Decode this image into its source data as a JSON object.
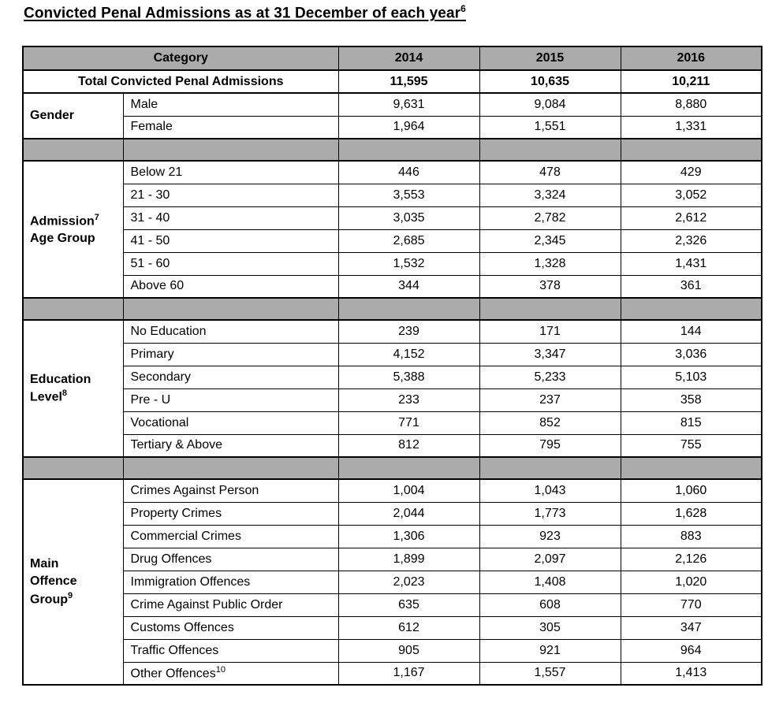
{
  "title": {
    "text": "Convicted Penal Admissions as at 31 December of each year",
    "superscript": "6"
  },
  "colors": {
    "header_bg": "#ababab",
    "separator_bg": "#ababab",
    "border": "#000000",
    "text": "#000000"
  },
  "table": {
    "header": {
      "category_label": "Category",
      "year_columns": [
        "2014",
        "2015",
        "2016"
      ]
    },
    "total_row": {
      "label": "Total Convicted Penal Admissions",
      "values": [
        "11,595",
        "10,635",
        "10,211"
      ]
    },
    "sections": [
      {
        "name": "gender",
        "label_lines": [
          {
            "text": "Gender",
            "sup": ""
          }
        ],
        "rows": [
          {
            "label": "Male",
            "sup": "",
            "values": [
              "9,631",
              "9,084",
              "8,880"
            ]
          },
          {
            "label": "Female",
            "sup": "",
            "values": [
              "1,964",
              "1,551",
              "1,331"
            ]
          }
        ]
      },
      {
        "name": "admission-age-group",
        "label_lines": [
          {
            "text": "Admission",
            "sup": "7"
          },
          {
            "text": "Age Group",
            "sup": ""
          }
        ],
        "rows": [
          {
            "label": "Below 21",
            "sup": "",
            "values": [
              "446",
              "478",
              "429"
            ]
          },
          {
            "label": "21 - 30",
            "sup": "",
            "values": [
              "3,553",
              "3,324",
              "3,052"
            ]
          },
          {
            "label": "31 - 40",
            "sup": "",
            "values": [
              "3,035",
              "2,782",
              "2,612"
            ]
          },
          {
            "label": "41 - 50",
            "sup": "",
            "values": [
              "2,685",
              "2,345",
              "2,326"
            ]
          },
          {
            "label": "51 - 60",
            "sup": "",
            "values": [
              "1,532",
              "1,328",
              "1,431"
            ]
          },
          {
            "label": "Above 60",
            "sup": "",
            "values": [
              "344",
              "378",
              "361"
            ]
          }
        ]
      },
      {
        "name": "education-level",
        "label_lines": [
          {
            "text": "Education",
            "sup": ""
          },
          {
            "text": "Level",
            "sup": "8"
          }
        ],
        "rows": [
          {
            "label": "No Education",
            "sup": "",
            "values": [
              "239",
              "171",
              "144"
            ]
          },
          {
            "label": "Primary",
            "sup": "",
            "values": [
              "4,152",
              "3,347",
              "3,036"
            ]
          },
          {
            "label": "Secondary",
            "sup": "",
            "values": [
              "5,388",
              "5,233",
              "5,103"
            ]
          },
          {
            "label": "Pre - U",
            "sup": "",
            "values": [
              "233",
              "237",
              "358"
            ]
          },
          {
            "label": "Vocational",
            "sup": "",
            "values": [
              "771",
              "852",
              "815"
            ]
          },
          {
            "label": "Tertiary & Above",
            "sup": "",
            "values": [
              "812",
              "795",
              "755"
            ]
          }
        ]
      },
      {
        "name": "main-offence-group",
        "label_lines": [
          {
            "text": "Main",
            "sup": ""
          },
          {
            "text": "Offence",
            "sup": ""
          },
          {
            "text": "Group",
            "sup": "9"
          }
        ],
        "rows": [
          {
            "label": "Crimes Against Person",
            "sup": "",
            "values": [
              "1,004",
              "1,043",
              "1,060"
            ]
          },
          {
            "label": "Property Crimes",
            "sup": "",
            "values": [
              "2,044",
              "1,773",
              "1,628"
            ]
          },
          {
            "label": "Commercial Crimes",
            "sup": "",
            "values": [
              "1,306",
              "923",
              "883"
            ]
          },
          {
            "label": "Drug Offences",
            "sup": "",
            "values": [
              "1,899",
              "2,097",
              "2,126"
            ]
          },
          {
            "label": "Immigration Offences",
            "sup": "",
            "values": [
              "2,023",
              "1,408",
              "1,020"
            ]
          },
          {
            "label": "Crime Against Public Order",
            "sup": "",
            "values": [
              "635",
              "608",
              "770"
            ]
          },
          {
            "label": "Customs Offences",
            "sup": "",
            "values": [
              "612",
              "305",
              "347"
            ]
          },
          {
            "label": "Traffic Offences",
            "sup": "",
            "values": [
              "905",
              "921",
              "964"
            ]
          },
          {
            "label": "Other Offences",
            "sup": "10",
            "values": [
              "1,167",
              "1,557",
              "1,413"
            ]
          }
        ]
      }
    ]
  }
}
